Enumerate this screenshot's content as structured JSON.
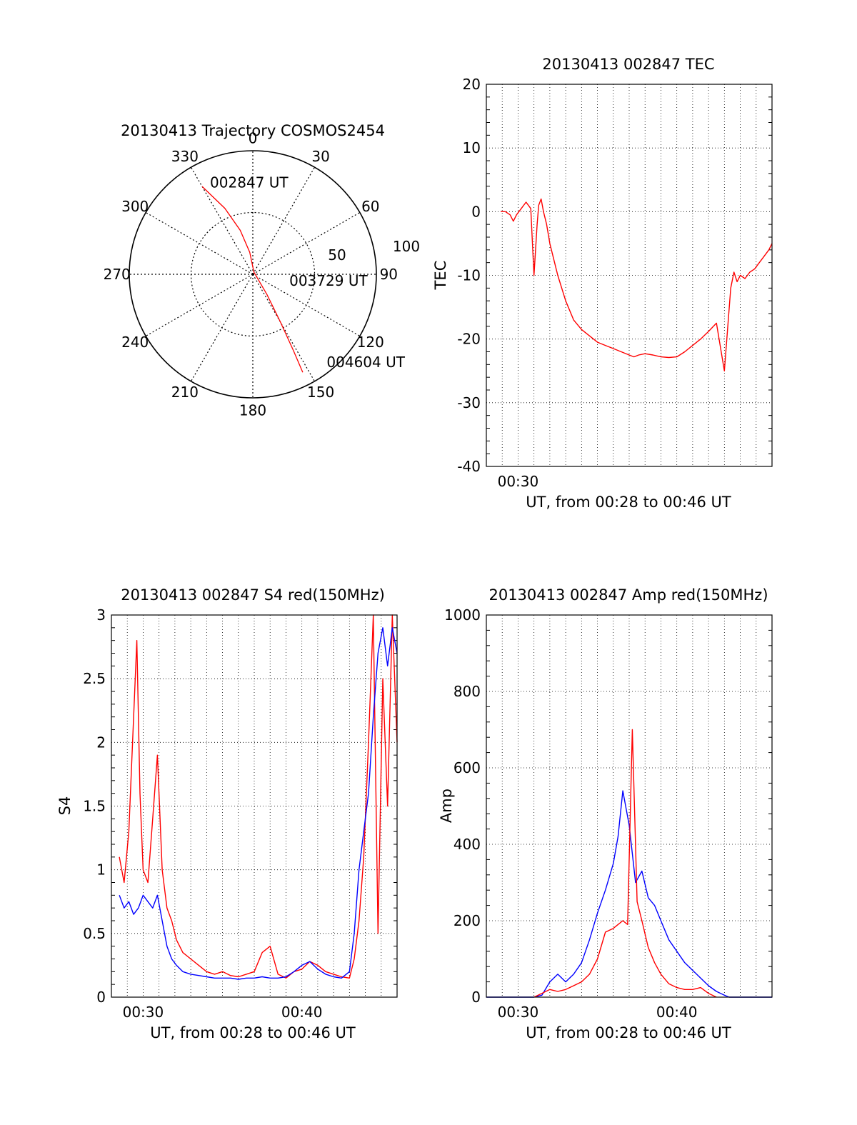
{
  "chart_data": [
    {
      "type": "polar",
      "title": "20130413 Trajectory COSMOS2454",
      "angle_labels": [
        "0",
        "30",
        "60",
        "90",
        "120",
        "150",
        "180",
        "210",
        "240",
        "270",
        "300",
        "330"
      ],
      "radial_labels": [
        "50",
        "100"
      ],
      "rlim": [
        0,
        100
      ],
      "grid": true,
      "trajectory": {
        "color": "#ff0000",
        "points": [
          {
            "az": 330,
            "r": 82
          },
          {
            "az": 337,
            "r": 58
          },
          {
            "az": 344,
            "r": 37
          },
          {
            "az": 352,
            "r": 18
          },
          {
            "az": 25,
            "r": 2
          },
          {
            "az": 145,
            "r": 20
          },
          {
            "az": 150,
            "r": 45
          },
          {
            "az": 152,
            "r": 70
          },
          {
            "az": 153,
            "r": 89
          }
        ]
      },
      "annotations": [
        {
          "text": "002847 UT",
          "az": 335,
          "r": 82
        },
        {
          "text": "003729 UT",
          "az": 100,
          "r": 30
        },
        {
          "text": "004604 UT",
          "az": 140,
          "r": 93
        }
      ]
    },
    {
      "type": "line",
      "title": "20130413 002847 TEC",
      "xlabel": "UT, from 00:28 to 00:46 UT",
      "ylabel": "TEC",
      "xlim": [
        0,
        18
      ],
      "ylim": [
        -40,
        20
      ],
      "yticks": [
        "-40",
        "-30",
        "-20",
        "-10",
        "0",
        "10",
        "20"
      ],
      "xticks": [
        {
          "value": 2,
          "label": "00:30"
        }
      ],
      "grid": true,
      "series": [
        {
          "color": "#ff0000",
          "x": [
            0.9,
            1.2,
            1.5,
            1.7,
            1.9,
            2.2,
            2.5,
            2.8,
            3.0,
            3.2,
            3.3,
            3.45,
            3.6,
            3.8,
            4.0,
            4.5,
            5.0,
            5.5,
            6.0,
            6.5,
            7.0,
            7.5,
            8.0,
            8.5,
            9.0,
            9.3,
            9.6,
            10.0,
            10.5,
            11.0,
            11.5,
            12.0,
            12.5,
            13.0,
            13.5,
            14.0,
            14.5,
            15.0,
            15.4,
            15.6,
            15.8,
            16.0,
            16.3,
            16.6,
            16.9,
            17.2,
            17.5,
            17.8,
            18.0
          ],
          "y": [
            0,
            0,
            -0.5,
            -1.5,
            -0.5,
            0.5,
            1.5,
            0.5,
            -10,
            -2,
            1,
            2,
            0,
            -2,
            -5,
            -10,
            -14,
            -17,
            -18.5,
            -19.5,
            -20.5,
            -21,
            -21.5,
            -22,
            -22.5,
            -22.8,
            -22.5,
            -22.3,
            -22.5,
            -22.8,
            -22.9,
            -22.8,
            -22,
            -21,
            -20,
            -18.8,
            -17.5,
            -25,
            -12,
            -9.5,
            -11,
            -10,
            -10.5,
            -9.5,
            -9,
            -8,
            -7,
            -6,
            -5
          ]
        }
      ]
    },
    {
      "type": "line",
      "title": "20130413 002847 S4 red(150MHz)",
      "xlabel": "UT, from 00:28 to 00:46 UT",
      "ylabel": "S4",
      "xlim": [
        0,
        18
      ],
      "ylim": [
        0,
        3
      ],
      "yticks": [
        "0",
        "0.5",
        "1",
        "1.5",
        "2",
        "2.5",
        "3"
      ],
      "xticks": [
        {
          "value": 2,
          "label": "00:30"
        },
        {
          "value": 12,
          "label": "00:40"
        }
      ],
      "grid": true,
      "series": [
        {
          "color": "#ff0000",
          "x": [
            0.5,
            0.8,
            1.1,
            1.4,
            1.6,
            1.8,
            2.0,
            2.3,
            2.6,
            2.9,
            3.2,
            3.5,
            3.8,
            4.1,
            4.5,
            5.0,
            5.5,
            6.0,
            6.5,
            7.0,
            7.5,
            8.0,
            8.5,
            9.0,
            9.5,
            10.0,
            10.5,
            11.0,
            11.5,
            12.0,
            12.5,
            13.0,
            13.5,
            14.0,
            14.5,
            15.0,
            15.3,
            15.6,
            15.9,
            16.2,
            16.5,
            16.8,
            17.1,
            17.4,
            17.7,
            18.0
          ],
          "y": [
            1.1,
            0.9,
            1.3,
            2.2,
            2.8,
            1.6,
            1.0,
            0.9,
            1.4,
            1.9,
            1.0,
            0.7,
            0.6,
            0.45,
            0.35,
            0.3,
            0.25,
            0.2,
            0.18,
            0.2,
            0.17,
            0.16,
            0.18,
            0.2,
            0.35,
            0.4,
            0.18,
            0.15,
            0.2,
            0.22,
            0.28,
            0.25,
            0.2,
            0.18,
            0.16,
            0.15,
            0.3,
            0.6,
            1.1,
            2.0,
            3.0,
            0.5,
            2.5,
            1.5,
            3.0,
            2.0
          ]
        },
        {
          "color": "#0000ff",
          "x": [
            0.5,
            0.8,
            1.1,
            1.4,
            1.7,
            2.0,
            2.3,
            2.6,
            2.9,
            3.2,
            3.5,
            3.8,
            4.1,
            4.5,
            5.0,
            5.5,
            6.0,
            6.5,
            7.0,
            7.5,
            8.0,
            8.5,
            9.0,
            9.5,
            10.0,
            10.5,
            11.0,
            11.5,
            12.0,
            12.5,
            13.0,
            13.5,
            14.0,
            14.5,
            15.0,
            15.3,
            15.6,
            15.9,
            16.2,
            16.5,
            16.8,
            17.1,
            17.4,
            17.7,
            18.0
          ],
          "y": [
            0.8,
            0.7,
            0.75,
            0.65,
            0.7,
            0.8,
            0.75,
            0.7,
            0.8,
            0.6,
            0.4,
            0.3,
            0.25,
            0.2,
            0.18,
            0.17,
            0.16,
            0.15,
            0.15,
            0.15,
            0.14,
            0.15,
            0.15,
            0.16,
            0.15,
            0.15,
            0.16,
            0.2,
            0.25,
            0.28,
            0.22,
            0.18,
            0.16,
            0.15,
            0.2,
            0.5,
            1.0,
            1.3,
            1.6,
            2.2,
            2.7,
            2.9,
            2.6,
            2.9,
            2.7
          ]
        }
      ]
    },
    {
      "type": "line",
      "title": "20130413 002847 Amp red(150MHz)",
      "xlabel": "UT, from 00:28 to 00:46 UT",
      "ylabel": "Amp",
      "xlim": [
        0,
        18
      ],
      "ylim": [
        0,
        1000
      ],
      "yticks": [
        "0",
        "200",
        "400",
        "600",
        "800",
        "1000"
      ],
      "xticks": [
        {
          "value": 2,
          "label": "00:30"
        },
        {
          "value": 12,
          "label": "00:40"
        }
      ],
      "grid": true,
      "series": [
        {
          "color": "#0000ff",
          "x": [
            0,
            2,
            3,
            3.5,
            4,
            4.5,
            5,
            5.5,
            6,
            6.5,
            7,
            7.5,
            8,
            8.3,
            8.6,
            9,
            9.4,
            9.8,
            10.2,
            10.6,
            11,
            11.5,
            12,
            12.5,
            13,
            13.5,
            14,
            14.5,
            15,
            15.3,
            15.6,
            16,
            17,
            18
          ],
          "y": [
            0,
            0,
            0,
            5,
            40,
            60,
            40,
            60,
            90,
            150,
            220,
            280,
            350,
            420,
            540,
            450,
            300,
            330,
            260,
            240,
            200,
            150,
            120,
            90,
            70,
            50,
            30,
            15,
            5,
            0,
            0,
            0,
            0,
            0
          ]
        },
        {
          "color": "#ff0000",
          "x": [
            3,
            3.5,
            4,
            4.5,
            5,
            5.5,
            6,
            6.5,
            7,
            7.5,
            8,
            8.3,
            8.6,
            8.9,
            9.2,
            9.5,
            9.8,
            10.2,
            10.6,
            11,
            11.5,
            12,
            12.5,
            13,
            13.5,
            14,
            14.5
          ],
          "y": [
            0,
            10,
            20,
            15,
            20,
            30,
            40,
            60,
            100,
            170,
            180,
            190,
            200,
            190,
            700,
            250,
            200,
            130,
            90,
            60,
            35,
            25,
            20,
            20,
            25,
            10,
            0
          ]
        }
      ]
    }
  ]
}
